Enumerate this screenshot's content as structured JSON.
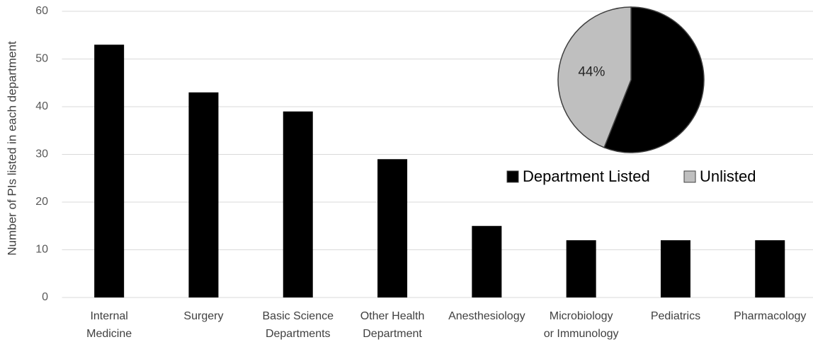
{
  "chart_data": [
    {
      "type": "bar",
      "ylabel": "Number of PIs listed in each department",
      "categories": [
        [
          "Internal",
          "Medicine"
        ],
        [
          "Surgery"
        ],
        [
          "Basic Science",
          "Departments"
        ],
        [
          "Other Health",
          "Department"
        ],
        [
          "Anesthesiology"
        ],
        [
          "Microbiology",
          "or Immunology"
        ],
        [
          "Pediatrics"
        ],
        [
          "Pharmacology"
        ]
      ],
      "values": [
        53,
        43,
        39,
        29,
        15,
        12,
        12,
        12
      ],
      "color": "#000000",
      "ylim": [
        0,
        60
      ],
      "yticks": [
        0,
        10,
        20,
        30,
        40,
        50,
        60
      ],
      "grid": true
    },
    {
      "type": "pie",
      "categories": [
        "Department Listed",
        "Unlisted"
      ],
      "values": [
        56,
        44
      ],
      "value_labels": [
        null,
        "44%"
      ],
      "colors": [
        "#000000",
        "#bfbfbf"
      ],
      "legend": "bottom"
    }
  ]
}
